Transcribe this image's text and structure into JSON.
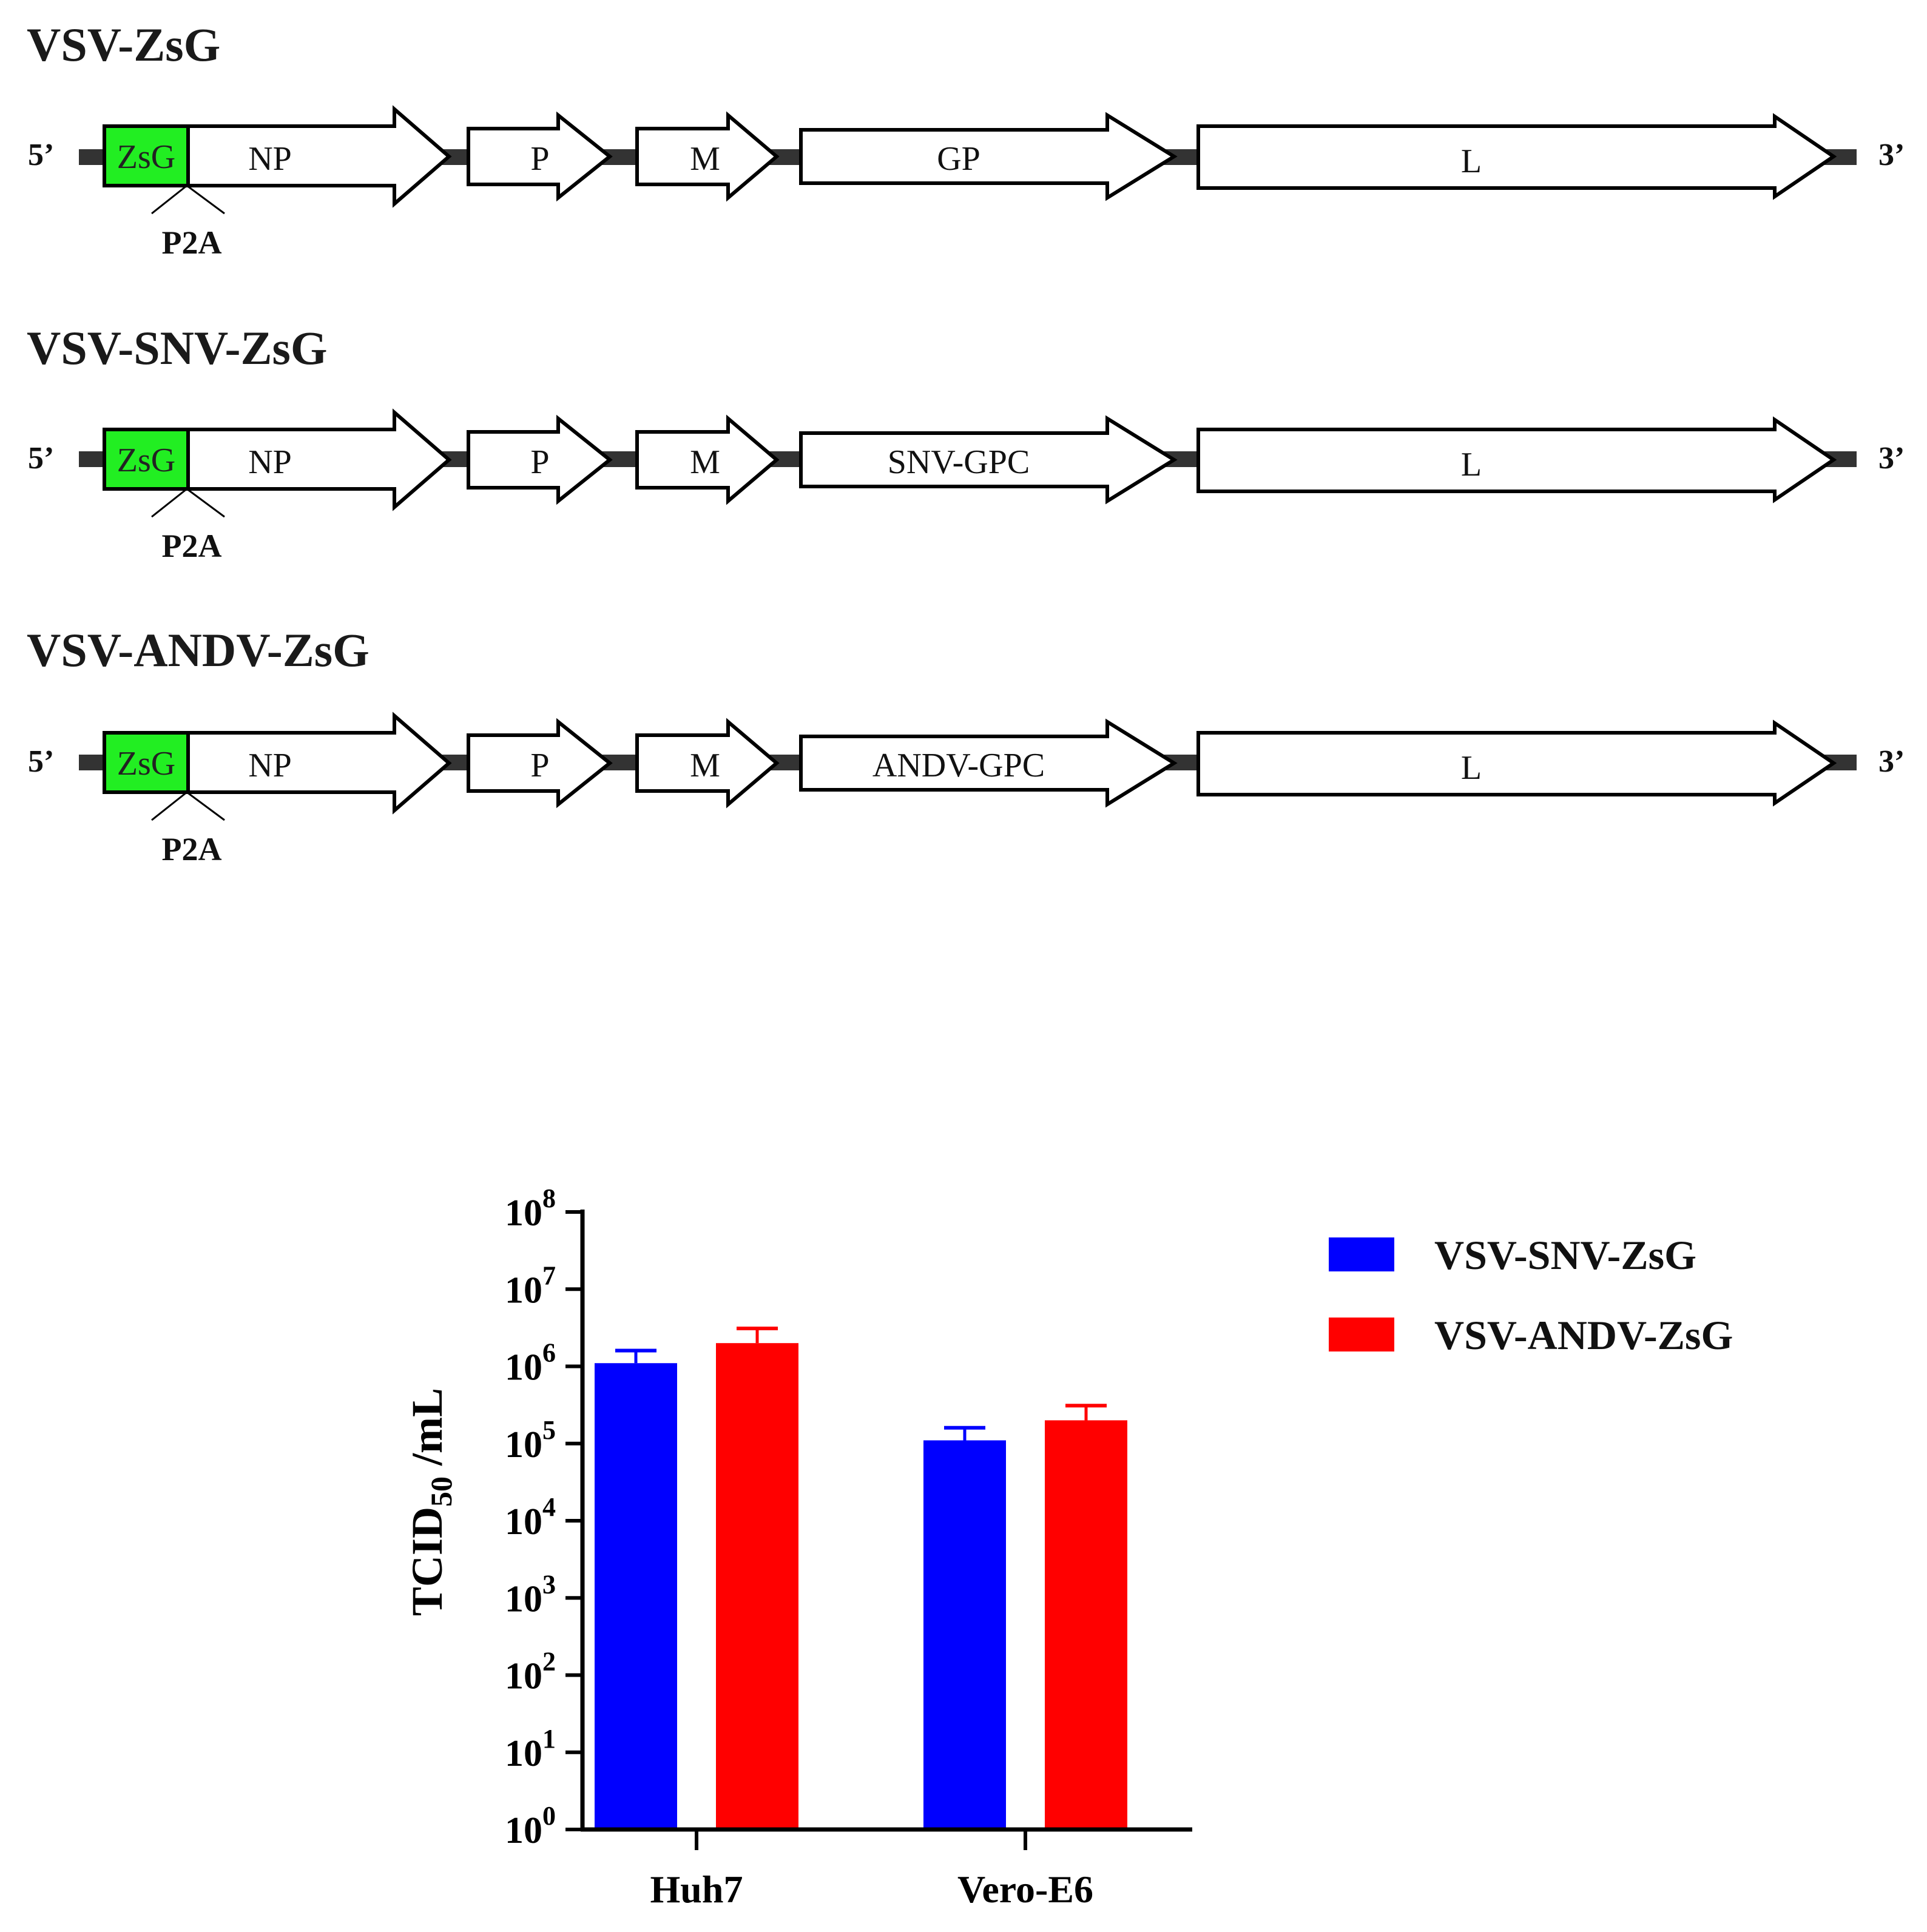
{
  "constructs": [
    {
      "name": "VSV-ZsG",
      "five_prime": "5’",
      "three_prime": "3’",
      "reporter": "ZsG",
      "linker": "P2A",
      "genes": [
        "NP",
        "P",
        "M",
        "GP",
        "L"
      ]
    },
    {
      "name": "VSV-SNV-ZsG",
      "five_prime": "5’",
      "three_prime": "3’",
      "reporter": "ZsG",
      "linker": "P2A",
      "genes": [
        "NP",
        "P",
        "M",
        "SNV-GPC",
        "L"
      ]
    },
    {
      "name": "VSV-ANDV-ZsG",
      "five_prime": "5’",
      "three_prime": "3’",
      "reporter": "ZsG",
      "linker": "P2A",
      "genes": [
        "NP",
        "P",
        "M",
        "ANDV-GPC",
        "L"
      ]
    }
  ],
  "colors": {
    "reporter_fill": "#22ee22",
    "backbone": "#333333",
    "series": [
      "#0000ff",
      "#ff0000"
    ]
  },
  "chart_data": {
    "type": "bar",
    "scale": "log10",
    "ylabel_main": "TCID",
    "ylabel_sub": "50",
    "ylabel_tail": " /mL",
    "y_tick_base": "10",
    "y_tick_exponents": [
      "0",
      "1",
      "2",
      "3",
      "4",
      "5",
      "6",
      "7",
      "8"
    ],
    "ylim": [
      1,
      100000000
    ],
    "categories": [
      "Huh7",
      "Vero-E6"
    ],
    "series": [
      {
        "name": "VSV-SNV-ZsG",
        "values": [
          1100000,
          110000
        ],
        "errors": [
          500000,
          50000
        ]
      },
      {
        "name": "VSV-ANDV-ZsG",
        "values": [
          2000000,
          200000
        ],
        "errors": [
          1100000,
          110000
        ]
      }
    ],
    "legend_position": "top-right",
    "grid": false
  }
}
